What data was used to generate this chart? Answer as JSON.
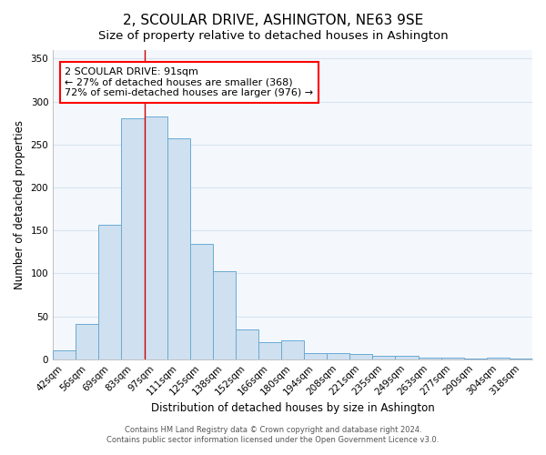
{
  "title": "2, SCOULAR DRIVE, ASHINGTON, NE63 9SE",
  "subtitle": "Size of property relative to detached houses in Ashington",
  "xlabel": "Distribution of detached houses by size in Ashington",
  "ylabel": "Number of detached properties",
  "bar_labels": [
    "42sqm",
    "56sqm",
    "69sqm",
    "83sqm",
    "97sqm",
    "111sqm",
    "125sqm",
    "138sqm",
    "152sqm",
    "166sqm",
    "180sqm",
    "194sqm",
    "208sqm",
    "221sqm",
    "235sqm",
    "249sqm",
    "263sqm",
    "277sqm",
    "290sqm",
    "304sqm",
    "318sqm"
  ],
  "bar_values": [
    10,
    41,
    157,
    281,
    283,
    257,
    134,
    103,
    35,
    20,
    22,
    7,
    7,
    6,
    4,
    4,
    2,
    2,
    1,
    2,
    1
  ],
  "bar_color": "#cfe0f0",
  "bar_edge_color": "#6aaad4",
  "ylim": [
    0,
    360
  ],
  "yticks": [
    0,
    50,
    100,
    150,
    200,
    250,
    300,
    350
  ],
  "vline_x": 3.5,
  "vline_color": "#cc0000",
  "annotation_text_line1": "2 SCOULAR DRIVE: 91sqm",
  "annotation_text_line2": "← 27% of detached houses are smaller (368)",
  "annotation_text_line3": "72% of semi-detached houses are larger (976) →",
  "footer1": "Contains HM Land Registry data © Crown copyright and database right 2024.",
  "footer2": "Contains public sector information licensed under the Open Government Licence v3.0.",
  "background_color": "#ffffff",
  "plot_bg_color": "#f4f8fc",
  "grid_color": "#d8e4f0",
  "title_fontsize": 11,
  "subtitle_fontsize": 9.5,
  "ylabel_fontsize": 8.5,
  "xlabel_fontsize": 8.5,
  "tick_fontsize": 7.5,
  "annotation_fontsize": 8,
  "footer_fontsize": 6
}
